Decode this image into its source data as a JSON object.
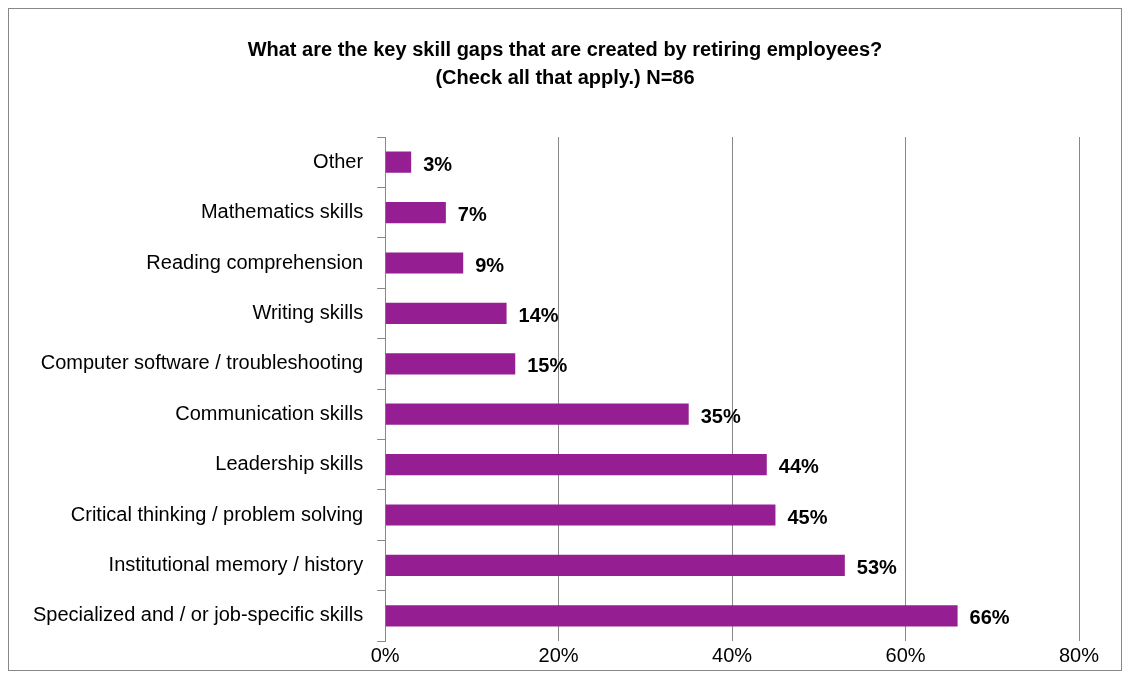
{
  "chart_data": {
    "type": "bar",
    "orientation": "horizontal",
    "title": "What are the key skill gaps that are created by retiring employees? (Check all that apply.)  N=86",
    "categories": [
      "Other",
      "Mathematics skills",
      "Reading comprehension",
      "Writing skills",
      "Computer software / troubleshooting",
      "Communication skills",
      "Leadership skills",
      "Critical thinking / problem solving",
      "Institutional memory / history",
      "Specialized and / or job-specific skills"
    ],
    "values": [
      3,
      7,
      9,
      14,
      15,
      35,
      44,
      45,
      53,
      66
    ],
    "value_labels": [
      "3%",
      "7%",
      "9%",
      "14%",
      "15%",
      "35%",
      "44%",
      "45%",
      "53%",
      "66%"
    ],
    "color": "#951e93",
    "xlim": [
      0,
      80
    ],
    "xticks": [
      {
        "value": 0,
        "label": "0%"
      },
      {
        "value": 20,
        "label": "20%"
      },
      {
        "value": 40,
        "label": "40%"
      },
      {
        "value": 60,
        "label": "60%"
      },
      {
        "value": 80,
        "label": "80%"
      }
    ],
    "grid": "x",
    "legend": false
  }
}
